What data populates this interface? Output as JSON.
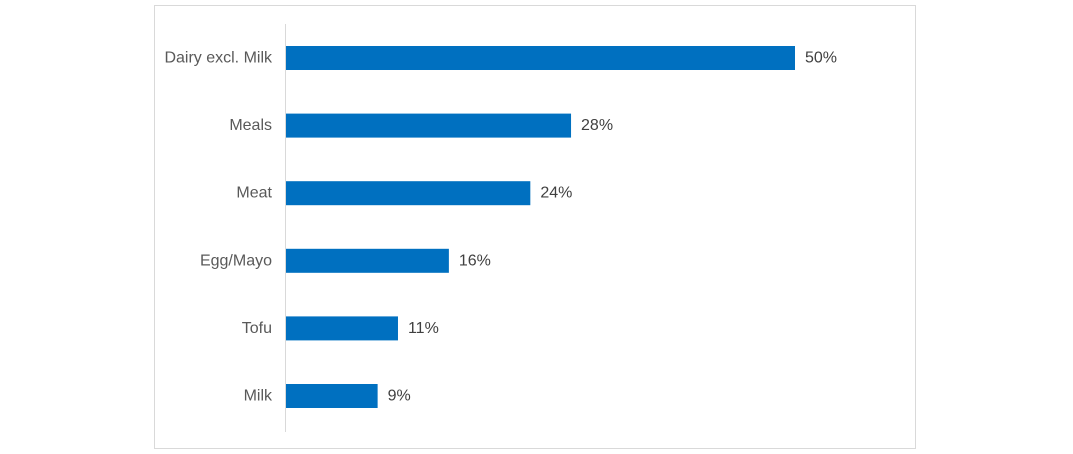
{
  "chart_data": {
    "type": "bar",
    "orientation": "horizontal",
    "categories": [
      "Dairy excl. Milk",
      "Meals",
      "Meat",
      "Egg/Mayo",
      "Tofu",
      "Milk"
    ],
    "values": [
      50,
      28,
      24,
      16,
      11,
      9
    ],
    "value_labels": [
      "50%",
      "28%",
      "24%",
      "16%",
      "11%",
      "9%"
    ],
    "value_unit": "%",
    "title": "",
    "xlabel": "",
    "ylabel": "",
    "xlim": [
      0,
      50
    ],
    "grid": false,
    "legend": "none",
    "bar_color": "#0070C0"
  }
}
